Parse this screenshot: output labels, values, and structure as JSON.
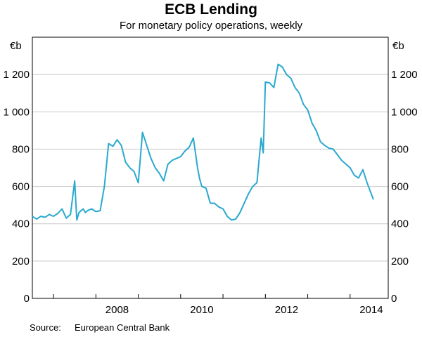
{
  "chart_data": {
    "type": "line",
    "title": "ECB Lending",
    "subtitle": "For monetary policy operations, weekly",
    "unit_left": "€b",
    "unit_right": "€b",
    "ylim": [
      0,
      1400
    ],
    "yticks": [
      0,
      200,
      400,
      600,
      800,
      1000,
      1200
    ],
    "ytick_labels": [
      "0",
      "200",
      "400",
      "600",
      "800",
      "1 000",
      "1 200"
    ],
    "xlim": [
      2006.5,
      2014.9
    ],
    "xtick_labels": [
      "2008",
      "2010",
      "2012",
      "2014"
    ],
    "xtick_positions": [
      2008,
      2010,
      2012,
      2014
    ],
    "year_boundaries": [
      2007,
      2008,
      2009,
      2010,
      2011,
      2012,
      2013,
      2014
    ],
    "grid": true,
    "line_color": "#29a9d0",
    "series": [
      {
        "name": "",
        "x": [
          2006.5,
          2006.6,
          2006.7,
          2006.8,
          2006.9,
          2007.0,
          2007.1,
          2007.2,
          2007.3,
          2007.4,
          2007.5,
          2007.55,
          2007.6,
          2007.65,
          2007.7,
          2007.75,
          2007.8,
          2007.9,
          2008.0,
          2008.1,
          2008.2,
          2008.3,
          2008.4,
          2008.5,
          2008.6,
          2008.7,
          2008.8,
          2008.9,
          2009.0,
          2009.1,
          2009.2,
          2009.3,
          2009.4,
          2009.5,
          2009.6,
          2009.7,
          2009.8,
          2009.9,
          2010.0,
          2010.1,
          2010.2,
          2010.3,
          2010.4,
          2010.45,
          2010.5,
          2010.6,
          2010.7,
          2010.8,
          2010.9,
          2011.0,
          2011.1,
          2011.2,
          2011.3,
          2011.4,
          2011.5,
          2011.6,
          2011.7,
          2011.8,
          2011.9,
          2011.95,
          2012.0,
          2012.1,
          2012.2,
          2012.3,
          2012.4,
          2012.5,
          2012.6,
          2012.7,
          2012.8,
          2012.9,
          2013.0,
          2013.1,
          2013.2,
          2013.3,
          2013.4,
          2013.5,
          2013.6,
          2013.7,
          2013.8,
          2013.9,
          2014.0,
          2014.1,
          2014.2,
          2014.3,
          2014.4,
          2014.5,
          2014.55
        ],
        "y": [
          440,
          425,
          440,
          435,
          450,
          440,
          455,
          480,
          430,
          450,
          630,
          420,
          460,
          470,
          480,
          460,
          470,
          480,
          465,
          470,
          600,
          830,
          815,
          850,
          820,
          730,
          700,
          680,
          620,
          890,
          820,
          750,
          700,
          670,
          630,
          720,
          740,
          750,
          760,
          790,
          810,
          860,
          700,
          640,
          600,
          590,
          510,
          510,
          490,
          480,
          440,
          420,
          425,
          460,
          510,
          560,
          600,
          620,
          860,
          780,
          1160,
          1155,
          1130,
          1255,
          1240,
          1200,
          1180,
          1130,
          1100,
          1040,
          1010,
          940,
          900,
          840,
          820,
          805,
          800,
          770,
          740,
          720,
          700,
          660,
          645,
          690,
          620,
          560,
          530
        ]
      }
    ]
  },
  "source": {
    "label": "Source:",
    "text": "European Central Bank"
  }
}
